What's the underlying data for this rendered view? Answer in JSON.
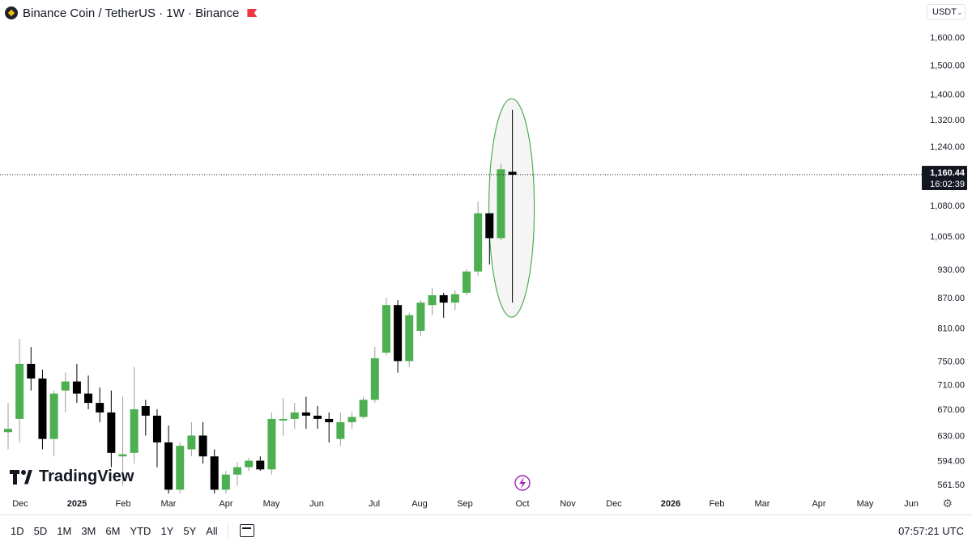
{
  "header": {
    "title": "Binance Coin / TetherUS · 1W · Binance",
    "currency": "USDT"
  },
  "chart_data": {
    "type": "candlestick",
    "symbol": "Binance Coin / TetherUS",
    "interval": "1W",
    "exchange": "Binance",
    "y_axis": {
      "scale": "log",
      "ticks": [
        "1,600.00",
        "1,500.00",
        "1,400.00",
        "1,320.00",
        "1,240.00",
        "1,080.00",
        "1,005.00",
        "930.00",
        "870.00",
        "810.00",
        "750.00",
        "710.00",
        "670.00",
        "630.00",
        "594.00",
        "561.50"
      ],
      "tick_values": [
        1600,
        1500,
        1400,
        1320,
        1240,
        1080,
        1005,
        930,
        870,
        810,
        750,
        710,
        670,
        630,
        594,
        561.5
      ],
      "range": [
        545,
        1720
      ]
    },
    "x_axis": {
      "labels": [
        "Dec",
        "2025",
        "Feb",
        "Mar",
        "Apr",
        "May",
        "Jun",
        "Jul",
        "Aug",
        "Sep",
        "Oct",
        "Nov",
        "Dec",
        "2026",
        "Feb",
        "Mar",
        "Apr",
        "May",
        "Jun"
      ]
    },
    "last_price": {
      "value": 1160.44,
      "label": "1,160.44",
      "countdown": "16:02:39"
    },
    "candles": [
      {
        "o": 635,
        "h": 680,
        "l": 610,
        "c": 640
      },
      {
        "o": 655,
        "h": 790,
        "l": 620,
        "c": 745
      },
      {
        "o": 745,
        "h": 775,
        "l": 700,
        "c": 720
      },
      {
        "o": 720,
        "h": 735,
        "l": 610,
        "c": 625
      },
      {
        "o": 625,
        "h": 700,
        "l": 600,
        "c": 695
      },
      {
        "o": 700,
        "h": 730,
        "l": 665,
        "c": 715
      },
      {
        "o": 715,
        "h": 745,
        "l": 680,
        "c": 695
      },
      {
        "o": 695,
        "h": 725,
        "l": 670,
        "c": 680
      },
      {
        "o": 680,
        "h": 705,
        "l": 650,
        "c": 665
      },
      {
        "o": 665,
        "h": 700,
        "l": 585,
        "c": 605
      },
      {
        "o": 600,
        "h": 690,
        "l": 560,
        "c": 603
      },
      {
        "o": 605,
        "h": 740,
        "l": 590,
        "c": 670
      },
      {
        "o": 675,
        "h": 685,
        "l": 630,
        "c": 660
      },
      {
        "o": 660,
        "h": 670,
        "l": 585,
        "c": 620
      },
      {
        "o": 620,
        "h": 645,
        "l": 550,
        "c": 555
      },
      {
        "o": 555,
        "h": 620,
        "l": 550,
        "c": 615
      },
      {
        "o": 610,
        "h": 650,
        "l": 600,
        "c": 630
      },
      {
        "o": 630,
        "h": 650,
        "l": 590,
        "c": 600
      },
      {
        "o": 600,
        "h": 610,
        "l": 550,
        "c": 555
      },
      {
        "o": 555,
        "h": 580,
        "l": 550,
        "c": 575
      },
      {
        "o": 575,
        "h": 592,
        "l": 560,
        "c": 585
      },
      {
        "o": 585,
        "h": 598,
        "l": 580,
        "c": 594
      },
      {
        "o": 594,
        "h": 600,
        "l": 580,
        "c": 582
      },
      {
        "o": 582,
        "h": 665,
        "l": 575,
        "c": 655
      },
      {
        "o": 655,
        "h": 688,
        "l": 630,
        "c": 655
      },
      {
        "o": 655,
        "h": 680,
        "l": 640,
        "c": 665
      },
      {
        "o": 665,
        "h": 690,
        "l": 640,
        "c": 660
      },
      {
        "o": 660,
        "h": 675,
        "l": 640,
        "c": 655
      },
      {
        "o": 655,
        "h": 665,
        "l": 620,
        "c": 650
      },
      {
        "o": 625,
        "h": 665,
        "l": 615,
        "c": 650
      },
      {
        "o": 650,
        "h": 665,
        "l": 640,
        "c": 658
      },
      {
        "o": 658,
        "h": 690,
        "l": 655,
        "c": 685
      },
      {
        "o": 685,
        "h": 775,
        "l": 680,
        "c": 755
      },
      {
        "o": 765,
        "h": 870,
        "l": 760,
        "c": 855
      },
      {
        "o": 855,
        "h": 865,
        "l": 730,
        "c": 750
      },
      {
        "o": 750,
        "h": 840,
        "l": 740,
        "c": 835
      },
      {
        "o": 805,
        "h": 865,
        "l": 795,
        "c": 860
      },
      {
        "o": 855,
        "h": 890,
        "l": 835,
        "c": 875
      },
      {
        "o": 875,
        "h": 880,
        "l": 830,
        "c": 860
      },
      {
        "o": 860,
        "h": 885,
        "l": 845,
        "c": 877
      },
      {
        "o": 880,
        "h": 930,
        "l": 875,
        "c": 925
      },
      {
        "o": 925,
        "h": 1090,
        "l": 915,
        "c": 1060
      },
      {
        "o": 1060,
        "h": 1060,
        "l": 940,
        "c": 1000
      },
      {
        "o": 1000,
        "h": 1190,
        "l": 995,
        "c": 1175
      },
      {
        "o": 1168,
        "h": 1350,
        "l": 860,
        "c": 1160
      }
    ],
    "colors": {
      "up": "#4caf50",
      "down": "#000000",
      "highlight": "#4caf50"
    }
  },
  "watermark": "TradingView",
  "bottom_bar": {
    "ranges": [
      "1D",
      "5D",
      "1M",
      "3M",
      "6M",
      "YTD",
      "1Y",
      "5Y",
      "All"
    ],
    "clock": "07:57:21 UTC"
  }
}
